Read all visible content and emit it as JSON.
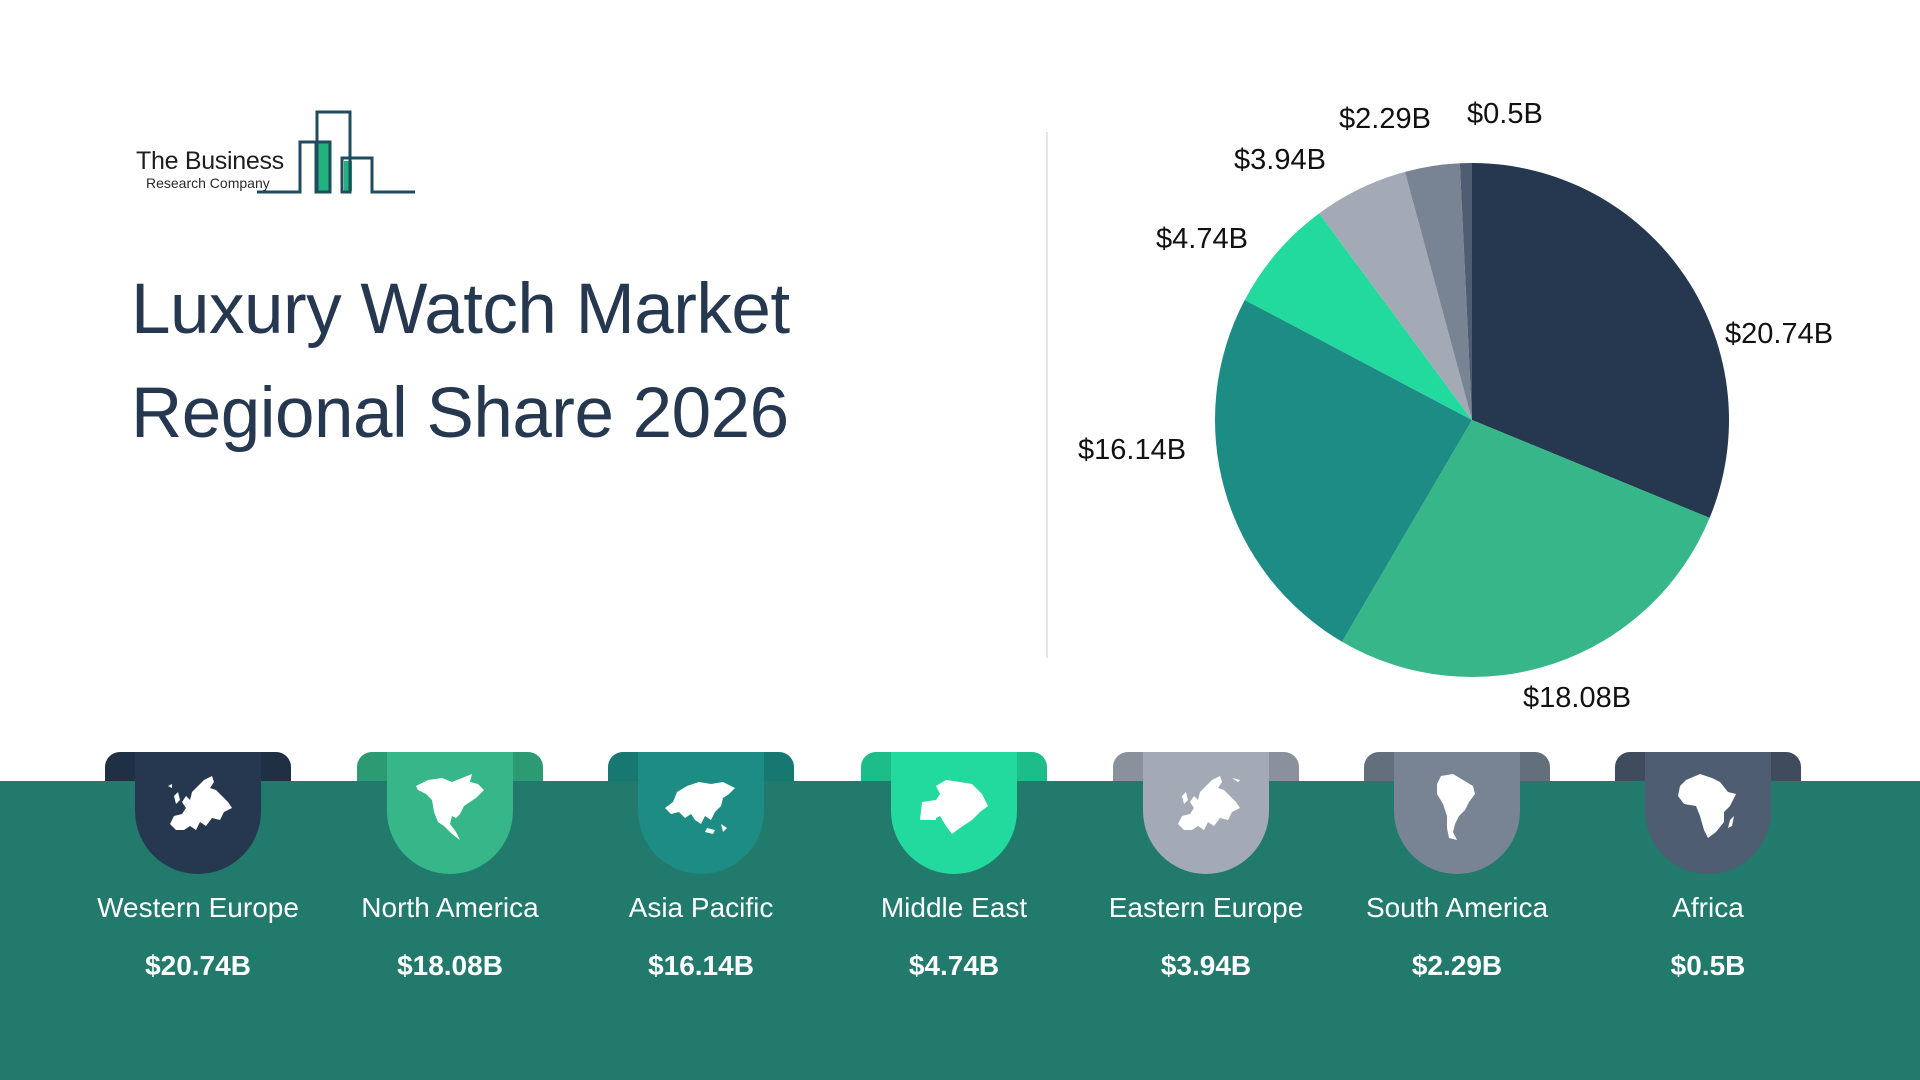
{
  "logo": {
    "line1": "The Business",
    "line2": "Research Company"
  },
  "title": {
    "line1": "Luxury Watch Market",
    "line2": "Regional Share 2026"
  },
  "colors": {
    "title": "#25384f",
    "band": "#217a6b",
    "divider": "#e6e6ea"
  },
  "regions": [
    {
      "name": "Western Europe",
      "value_label": "$20.74B",
      "value": 20.74,
      "color": "#25384f",
      "tab_color": "#1f3044",
      "icon": "europe-map-icon"
    },
    {
      "name": "North America",
      "value_label": "$18.08B",
      "value": 18.08,
      "color": "#36b689",
      "tab_color": "#2c9a72",
      "icon": "north-america-map-icon"
    },
    {
      "name": "Asia Pacific",
      "value_label": "$16.14B",
      "value": 16.14,
      "color": "#1c8c84",
      "tab_color": "#167870",
      "icon": "asia-map-icon"
    },
    {
      "name": "Middle East",
      "value_label": "$4.74B",
      "value": 4.74,
      "color": "#22d99e",
      "tab_color": "#1dbd89",
      "icon": "middle-east-map-icon"
    },
    {
      "name": "Eastern Europe",
      "value_label": "$3.94B",
      "value": 3.94,
      "color": "#a4aab5",
      "tab_color": "#8b919c",
      "icon": "europe-map-icon"
    },
    {
      "name": "South America",
      "value_label": "$2.29B",
      "value": 2.29,
      "color": "#788494",
      "tab_color": "#646f7d",
      "icon": "south-america-map-icon"
    },
    {
      "name": "Africa",
      "value_label": "$0.5B",
      "value": 0.5,
      "color": "#4e5d71",
      "tab_color": "#3f4c5d",
      "icon": "africa-map-icon"
    }
  ],
  "chart_data": {
    "type": "pie",
    "title": "Luxury Watch Market Regional Share 2026",
    "categories": [
      "Western Europe",
      "North America",
      "Asia Pacific",
      "Middle East",
      "Eastern Europe",
      "South America",
      "Africa"
    ],
    "values": [
      20.74,
      18.08,
      16.14,
      4.74,
      3.94,
      2.29,
      0.5
    ],
    "data_labels": [
      "$20.74B",
      "$18.08B",
      "$16.14B",
      "$4.74B",
      "$3.94B",
      "$2.29B",
      "$0.5B"
    ],
    "colors": [
      "#25384f",
      "#36b689",
      "#1c8c84",
      "#22d99e",
      "#a4aab5",
      "#788494",
      "#4e5d71"
    ],
    "unit": "USD billions",
    "start_angle": "12 o'clock",
    "direction": "clockwise",
    "legend_position": "bottom (region cards)"
  }
}
